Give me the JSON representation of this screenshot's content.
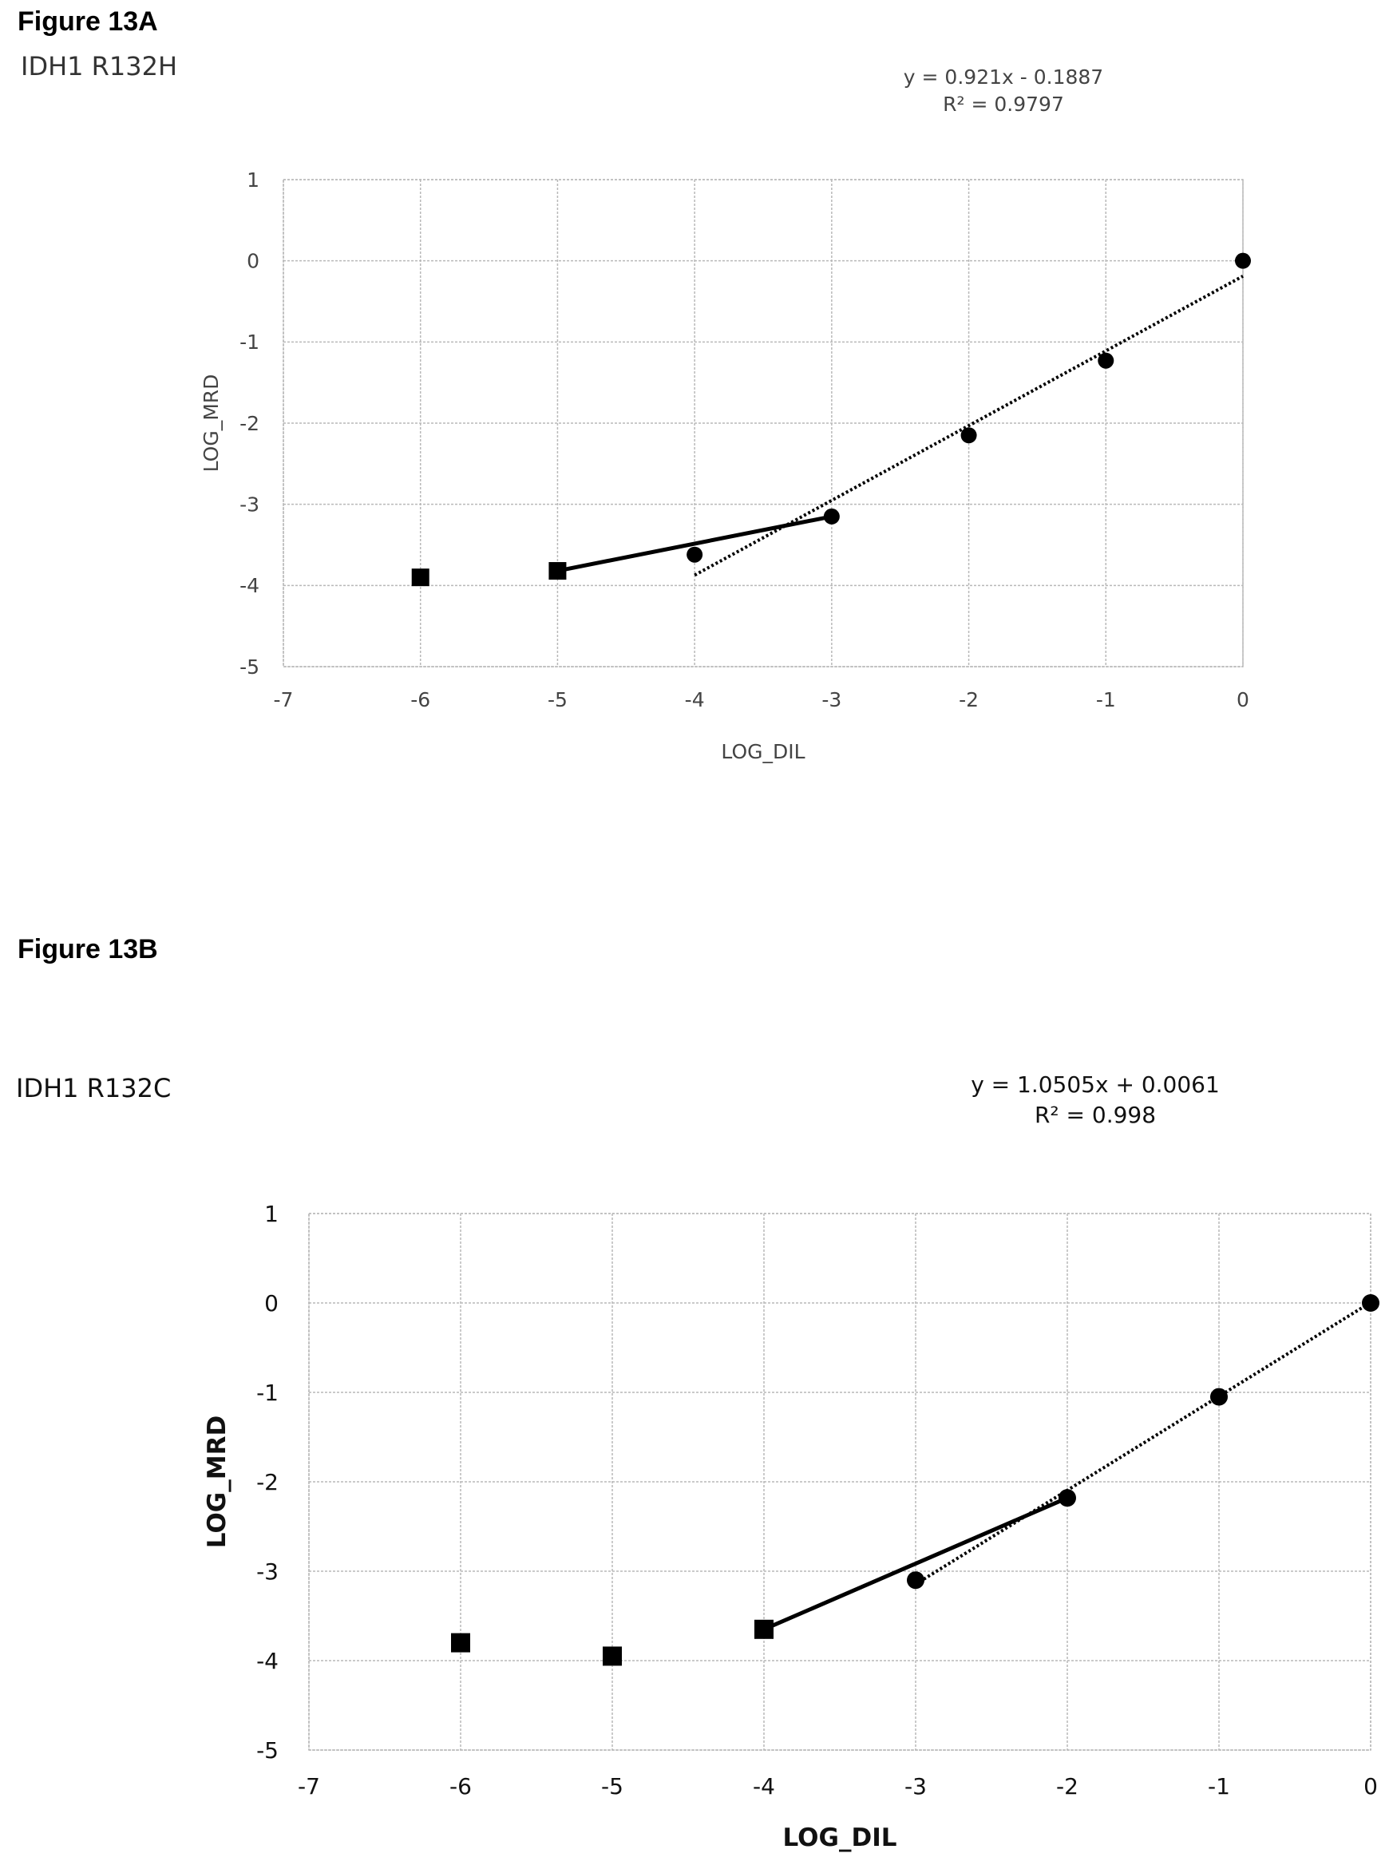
{
  "figures": [
    {
      "label": "Figure 13A",
      "title": "IDH1 R132H"
    },
    {
      "label": "Figure 13B",
      "title": "IDH1 R132C"
    }
  ],
  "chart_data": [
    {
      "type": "scatter",
      "xlabel": "LOG_DIL",
      "ylabel": "LOG_MRD",
      "xlim": [
        -7,
        0
      ],
      "ylim": [
        -5,
        1
      ],
      "xticks": [
        -7,
        -6,
        -5,
        -4,
        -3,
        -2,
        -1,
        0
      ],
      "yticks": [
        1,
        0,
        -1,
        -2,
        -3,
        -4,
        -5
      ],
      "grid": true,
      "series": [
        {
          "marker": "circle",
          "x": [
            0,
            -1,
            -2,
            -3,
            -4
          ],
          "y": [
            0,
            -1.23,
            -2.15,
            -3.15,
            -3.62
          ]
        },
        {
          "marker": "square",
          "x": [
            -6,
            -5
          ],
          "y": [
            -3.9,
            -3.82
          ]
        }
      ],
      "segment": {
        "x": [
          -5,
          -3
        ],
        "y": [
          -3.82,
          -3.15
        ]
      },
      "trendline": {
        "slope": 0.921,
        "intercept": -0.1887,
        "x_range": [
          -4,
          0
        ],
        "equation": "y = 0.921x - 0.1887",
        "r_squared": "R² = 0.9797"
      }
    },
    {
      "type": "scatter",
      "xlabel": "LOG_DIL",
      "ylabel": "LOG_MRD",
      "xlim": [
        -7,
        0
      ],
      "ylim": [
        -5,
        1
      ],
      "xticks": [
        -7,
        -6,
        -5,
        -4,
        -3,
        -2,
        -1,
        0
      ],
      "yticks": [
        1,
        0,
        -1,
        -2,
        -3,
        -4,
        -5
      ],
      "grid": true,
      "series": [
        {
          "marker": "circle",
          "x": [
            0,
            -1,
            -2,
            -3
          ],
          "y": [
            0,
            -1.05,
            -2.18,
            -3.1
          ]
        },
        {
          "marker": "square",
          "x": [
            -6,
            -5,
            -4
          ],
          "y": [
            -3.8,
            -3.95,
            -3.65
          ]
        }
      ],
      "segment": {
        "x": [
          -4,
          -2
        ],
        "y": [
          -3.65,
          -2.18
        ]
      },
      "trendline": {
        "slope": 1.0505,
        "intercept": 0.0061,
        "x_range": [
          -3,
          0
        ],
        "equation": "y = 1.0505x + 0.0061",
        "r_squared": "R² = 0.998"
      }
    }
  ]
}
